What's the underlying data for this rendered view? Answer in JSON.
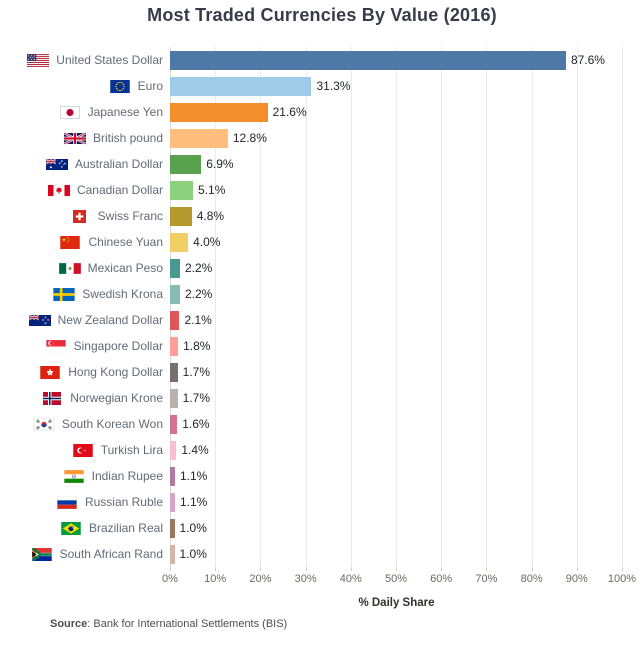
{
  "title": "Most Traded Currencies By Value (2016)",
  "chart_data": {
    "type": "bar",
    "orientation": "horizontal",
    "title": "Most Traded Currencies By Value (2016)",
    "categories": [
      "United States Dollar",
      "Euro",
      "Japanese Yen",
      "British pound",
      "Australian Dollar",
      "Canadian Dollar",
      "Swiss Franc",
      "Chinese Yuan",
      "Mexican Peso",
      "Swedish Krona",
      "New Zealand Dollar",
      "Singapore Dollar",
      "Hong Kong Dollar",
      "Norwegian Krone",
      "South Korean Won",
      "Turkish Lira",
      "Indian Rupee",
      "Russian Ruble",
      "Brazilian Real",
      "South African Rand"
    ],
    "values": [
      87.6,
      31.3,
      21.6,
      12.8,
      6.9,
      5.1,
      4.8,
      4.0,
      2.2,
      2.2,
      2.1,
      1.8,
      1.7,
      1.7,
      1.6,
      1.4,
      1.1,
      1.1,
      1.0,
      1.0
    ],
    "value_labels": [
      "87.6%",
      "31.3%",
      "21.6%",
      "12.8%",
      "6.9%",
      "5.1%",
      "4.8%",
      "4.0%",
      "2.2%",
      "2.2%",
      "2.1%",
      "1.8%",
      "1.7%",
      "1.7%",
      "1.6%",
      "1.4%",
      "1.1%",
      "1.1%",
      "1.0%",
      "1.0%"
    ],
    "colors": [
      "#4e79a7",
      "#a0cbe8",
      "#f28e2b",
      "#ffbe7d",
      "#59a14f",
      "#8cd17d",
      "#b6992d",
      "#f1ce63",
      "#499894",
      "#86bcb6",
      "#e15759",
      "#ff9d9a",
      "#79706e",
      "#bab0ac",
      "#d37295",
      "#fabfd2",
      "#b07aa1",
      "#d4a6c8",
      "#9d7660",
      "#d7b5a6"
    ],
    "flags": [
      "us-flag-icon",
      "eu-flag-icon",
      "japan-flag-icon",
      "uk-flag-icon",
      "australia-flag-icon",
      "canada-flag-icon",
      "swiss-flag-icon",
      "china-flag-icon",
      "mexico-flag-icon",
      "sweden-flag-icon",
      "nz-flag-icon",
      "singapore-flag-icon",
      "hk-flag-icon",
      "norway-flag-icon",
      "korea-flag-icon",
      "turkey-flag-icon",
      "india-flag-icon",
      "russia-flag-icon",
      "brazil-flag-icon",
      "za-flag-icon"
    ],
    "xlabel": "% Daily Share",
    "xlim": [
      0,
      100
    ],
    "x_ticks": [
      "0%",
      "10%",
      "20%",
      "30%",
      "40%",
      "50%",
      "60%",
      "70%",
      "80%",
      "90%",
      "100%"
    ],
    "grid": true,
    "legend": "none"
  },
  "source": {
    "label": "Source",
    "rest": ": Bank for International Settlements (BIS)"
  }
}
